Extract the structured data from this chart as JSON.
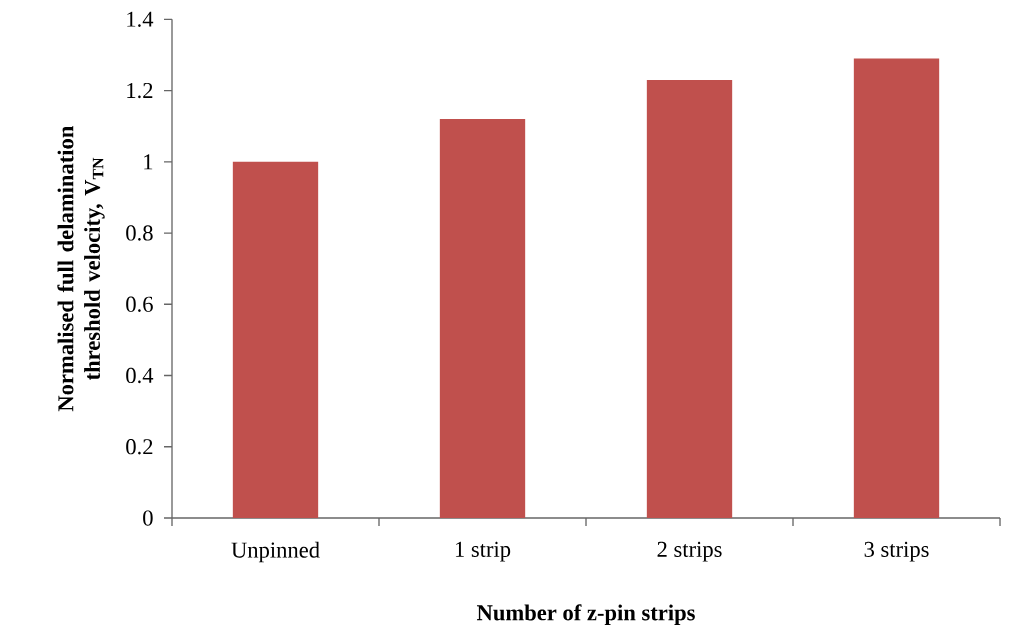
{
  "chart_data": {
    "type": "bar",
    "xlabel": "Number of z-pin strips",
    "ylabel": "Normalised full delamination threshold velocity, V$_{TN}$",
    "categories": [
      "Unpinned",
      "1 strip",
      "2 strips",
      "3 strips"
    ],
    "values": [
      1.0,
      1.12,
      1.23,
      1.29
    ],
    "color": "#c0504d",
    "ylim": [
      0,
      1.4
    ],
    "yticks": [
      0,
      {
        "value": 0.2,
        "label": "0.2"
      },
      {
        "value": 0.4,
        "label": "0.4"
      },
      {
        "value": 0.6,
        "label": "0.6"
      },
      {
        "value": 0.8,
        "label": "0.8"
      },
      1,
      {
        "value": 1.2,
        "label": "1.2"
      },
      {
        "value": 1.4,
        "label": "1.4"
      }
    ],
    "grid": false
  }
}
